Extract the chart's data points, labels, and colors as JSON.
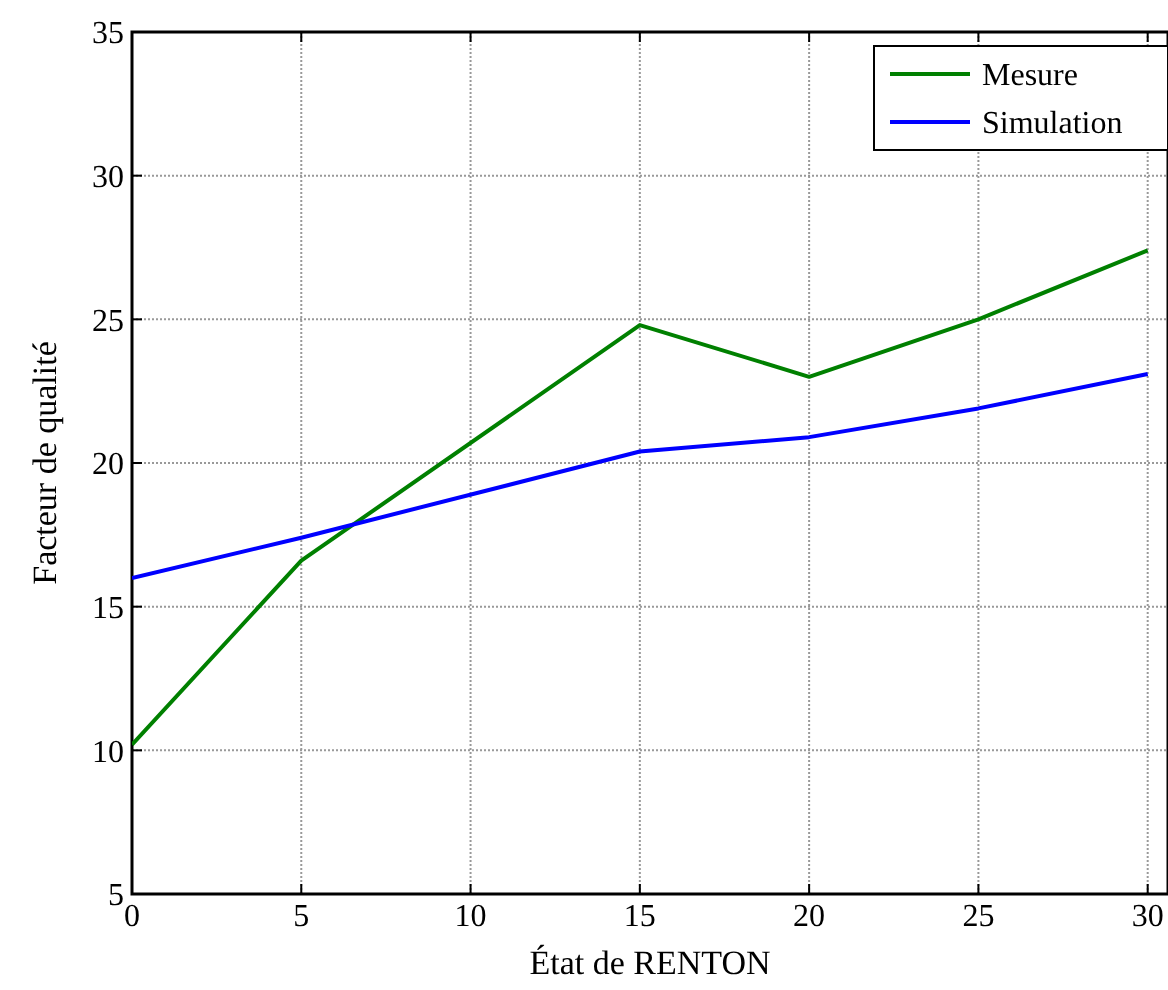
{
  "chart_data": {
    "type": "line",
    "xlabel": "État de RENTON",
    "ylabel": "Facteur de qualité",
    "x": [
      0,
      5,
      15,
      20,
      25,
      30
    ],
    "series": [
      {
        "name": "Mesure",
        "color": "#008000",
        "values": [
          10.2,
          16.6,
          24.8,
          23.0,
          25.0,
          27.4
        ]
      },
      {
        "name": "Simulation",
        "color": "#0000ff",
        "values": [
          16.0,
          17.4,
          20.4,
          20.9,
          21.9,
          23.1
        ]
      }
    ],
    "xlim": [
      0,
      30.6
    ],
    "xticks": [
      0,
      5,
      10,
      15,
      20,
      25,
      30
    ],
    "ylim": [
      5,
      35
    ],
    "yticks": [
      5,
      10,
      15,
      20,
      25,
      30,
      35
    ],
    "grid": true,
    "legend": "top right",
    "marker": "none",
    "line_style": "solid"
  }
}
